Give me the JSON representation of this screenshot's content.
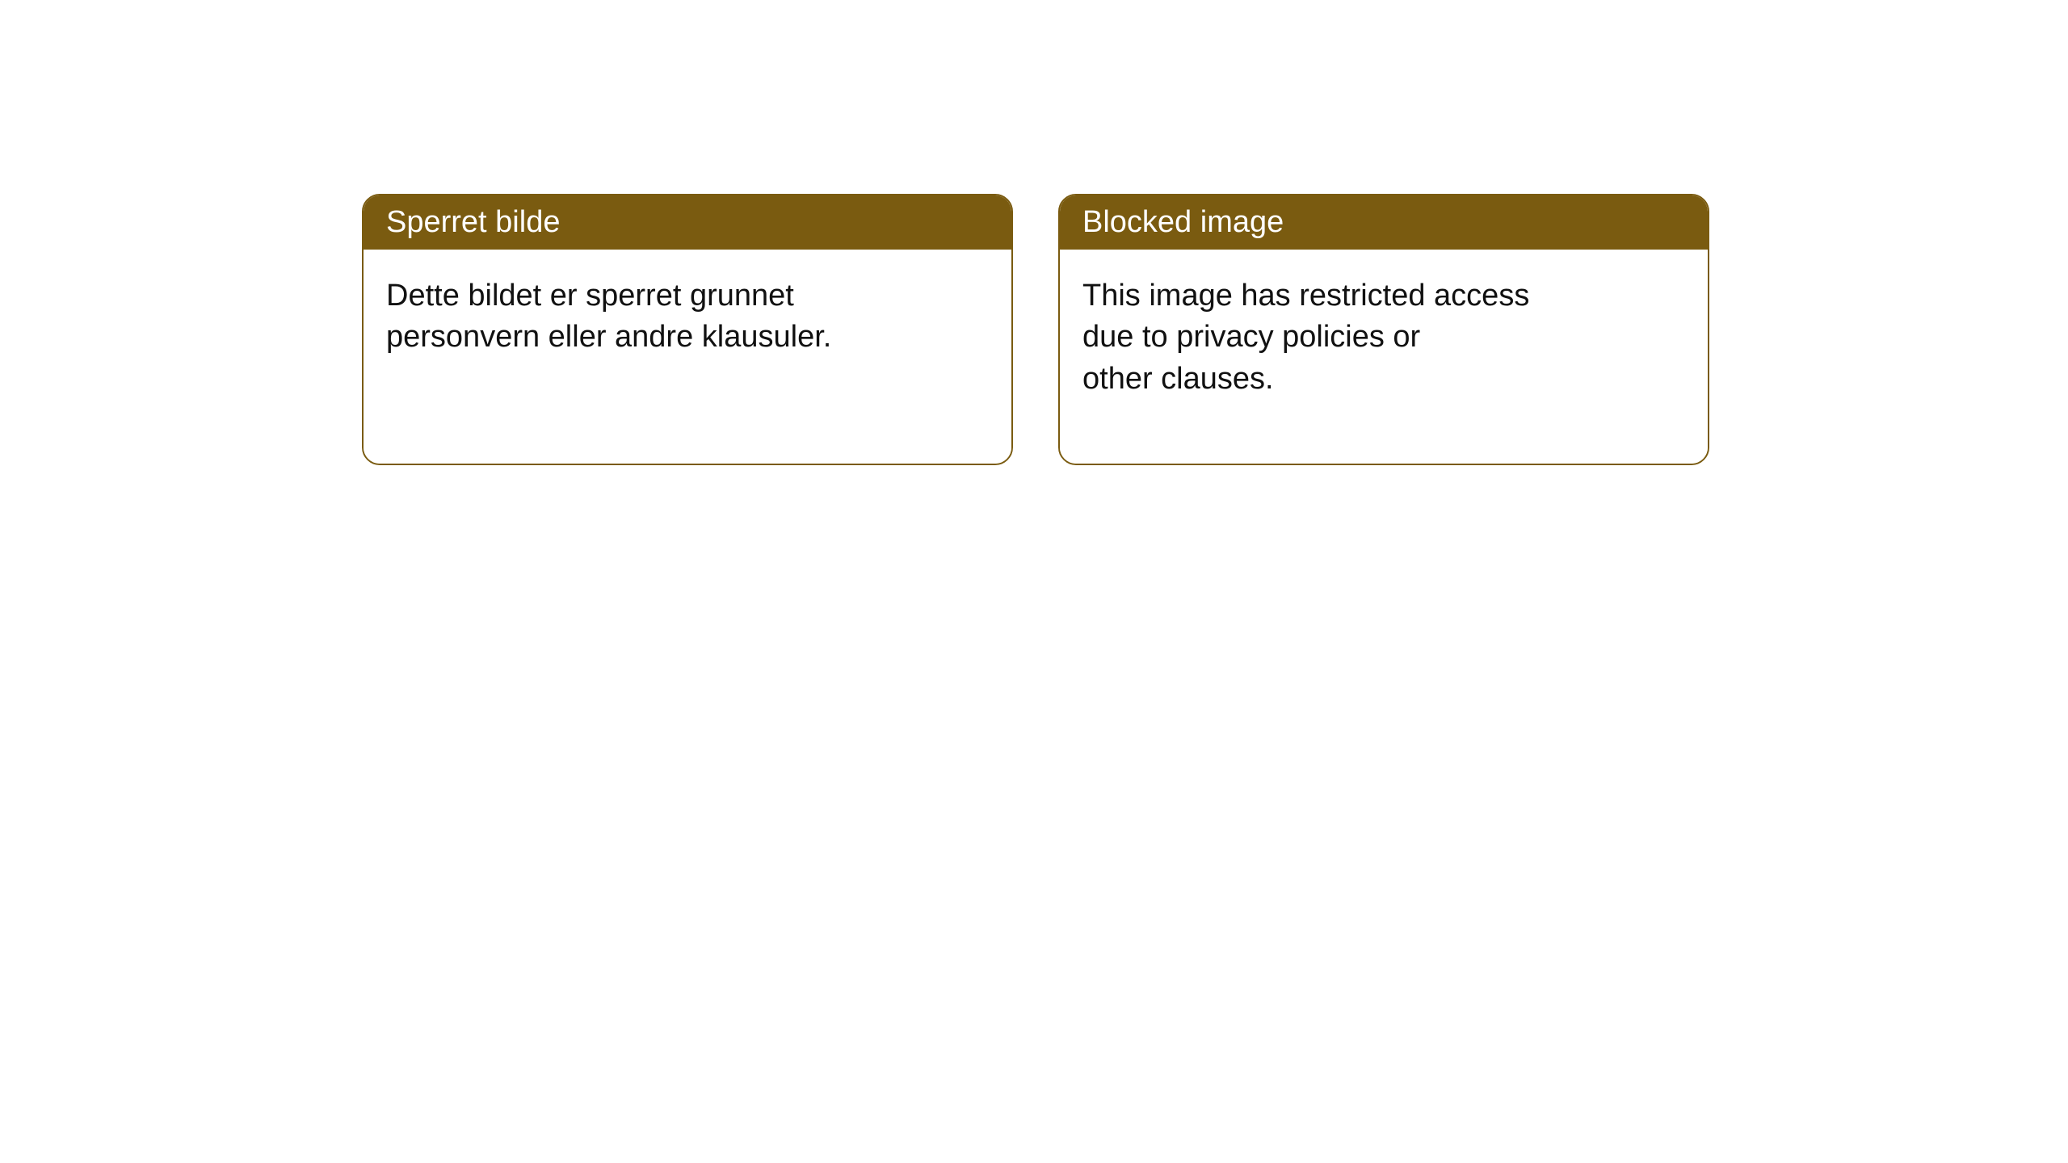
{
  "layout": {
    "background_color": "#ffffff",
    "card_border_color": "#7a5b10",
    "card_border_width": 2,
    "card_border_radius": 22,
    "header_bg_color": "#7a5b10",
    "header_text_color": "#ffffff",
    "body_text_color": "#111111",
    "header_font_size": 38,
    "body_font_size": 38
  },
  "cards": [
    {
      "title": "Sperret bilde",
      "body": "Dette bildet er sperret grunnet\npersonvern eller andre klausuler."
    },
    {
      "title": "Blocked image",
      "body": "This image has restricted access\ndue to privacy policies or\nother clauses."
    }
  ]
}
